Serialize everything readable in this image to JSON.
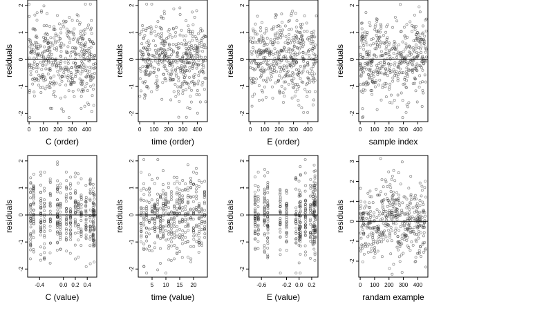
{
  "colors": {
    "point": "#333333",
    "axis": "#000000",
    "background": "#ffffff"
  },
  "chart_data": [
    {
      "type": "scatter",
      "xlabel": "C (order)",
      "ylabel": "residuals",
      "x_ticks": [
        "0",
        "100",
        "200",
        "300",
        "400"
      ],
      "x_tick_values": [
        0,
        100,
        200,
        300,
        400
      ],
      "xlim": [
        -10,
        470
      ],
      "y_ticks": [
        "-2",
        "-1",
        "0",
        "1",
        "2"
      ],
      "y_tick_values": [
        -2,
        -1,
        0,
        1,
        2
      ],
      "ylim": [
        -2.3,
        2.2
      ],
      "reference_line": 0,
      "n_points": 450,
      "x_pattern": "uniform",
      "spread": 0.75
    },
    {
      "type": "scatter",
      "xlabel": "time (order)",
      "ylabel": "residuals",
      "x_ticks": [
        "0",
        "100",
        "200",
        "300",
        "400"
      ],
      "x_tick_values": [
        0,
        100,
        200,
        300,
        400
      ],
      "xlim": [
        -10,
        470
      ],
      "y_ticks": [
        "-2",
        "-1",
        "0",
        "1",
        "2"
      ],
      "y_tick_values": [
        -2,
        -1,
        0,
        1,
        2
      ],
      "ylim": [
        -2.3,
        2.2
      ],
      "reference_line": 0,
      "n_points": 450,
      "x_pattern": "uniform",
      "spread": 0.75
    },
    {
      "type": "scatter",
      "xlabel": "E (order)",
      "ylabel": "residuals",
      "x_ticks": [
        "0",
        "100",
        "200",
        "300",
        "400"
      ],
      "x_tick_values": [
        0,
        100,
        200,
        300,
        400
      ],
      "xlim": [
        -10,
        470
      ],
      "y_ticks": [
        "-2",
        "-1",
        "0",
        "1",
        "2"
      ],
      "y_tick_values": [
        -2,
        -1,
        0,
        1,
        2
      ],
      "ylim": [
        -2.3,
        2.2
      ],
      "reference_line": 0,
      "n_points": 450,
      "x_pattern": "uniform",
      "spread": 0.75
    },
    {
      "type": "scatter",
      "xlabel": "sample index",
      "ylabel": "residuals",
      "x_ticks": [
        "0",
        "100",
        "200",
        "300",
        "400"
      ],
      "x_tick_values": [
        0,
        100,
        200,
        300,
        400
      ],
      "xlim": [
        -10,
        470
      ],
      "y_ticks": [
        "-2",
        "-1",
        "0",
        "1",
        "2"
      ],
      "y_tick_values": [
        -2,
        -1,
        0,
        1,
        2
      ],
      "ylim": [
        -2.3,
        2.2
      ],
      "reference_line": 0,
      "n_points": 450,
      "x_pattern": "uniform",
      "spread": 0.75
    },
    {
      "type": "scatter",
      "xlabel": "C (value)",
      "ylabel": "residuals",
      "x_ticks": [
        "-0.4",
        "0.0",
        "0.2",
        "0.4"
      ],
      "x_tick_values": [
        -0.4,
        0.0,
        0.2,
        0.4
      ],
      "xlim": [
        -0.6,
        0.56
      ],
      "y_ticks": [
        "-2",
        "-1",
        "0",
        "1",
        "2"
      ],
      "y_tick_values": [
        -2,
        -1,
        0,
        1,
        2
      ],
      "ylim": [
        -2.3,
        2.2
      ],
      "reference_line": 0,
      "n_points": 450,
      "x_pattern": "clusters",
      "spread": 0.75,
      "x_clusters": [
        -0.55,
        -0.5,
        -0.38,
        -0.32,
        -0.22,
        -0.1,
        -0.05,
        0.05,
        0.12,
        0.2,
        0.25,
        0.3,
        0.38,
        0.45,
        0.5,
        0.52
      ]
    },
    {
      "type": "scatter",
      "xlabel": "time (value)",
      "ylabel": "residuals",
      "x_ticks": [
        "5",
        "10",
        "15",
        "20"
      ],
      "x_tick_values": [
        5,
        10,
        15,
        20
      ],
      "xlim": [
        0,
        25
      ],
      "y_ticks": [
        "-2",
        "-1",
        "0",
        "1",
        "2"
      ],
      "y_tick_values": [
        -2,
        -1,
        0,
        1,
        2
      ],
      "ylim": [
        -2.3,
        2.2
      ],
      "reference_line": 0,
      "n_points": 450,
      "x_pattern": "clusters",
      "spread": 0.75,
      "x_clusters": [
        1,
        2,
        3,
        4,
        5,
        6,
        7,
        8,
        9,
        10,
        11,
        12,
        13,
        14,
        15,
        16,
        17,
        18,
        19,
        20,
        21,
        22,
        23,
        24
      ]
    },
    {
      "type": "scatter",
      "xlabel": "E (value)",
      "ylabel": "residuals",
      "x_ticks": [
        "-0.6",
        "-0.2",
        "0.0",
        "0.2"
      ],
      "x_tick_values": [
        -0.6,
        -0.2,
        0.0,
        0.2
      ],
      "xlim": [
        -0.8,
        0.3
      ],
      "y_ticks": [
        "-2",
        "-1",
        "0",
        "1",
        "2"
      ],
      "y_tick_values": [
        -2,
        -1,
        0,
        1,
        2
      ],
      "ylim": [
        -2.3,
        2.2
      ],
      "reference_line": 0,
      "n_points": 450,
      "x_pattern": "clusters",
      "spread": 0.75,
      "x_clusters": [
        -0.7,
        -0.65,
        -0.55,
        -0.5,
        -0.3,
        -0.2,
        -0.05,
        0.0,
        0.02,
        0.1,
        0.18,
        0.22,
        0.24,
        0.25,
        0.26
      ]
    },
    {
      "type": "scatter",
      "xlabel": "randam example",
      "ylabel": "residuals",
      "x_ticks": [
        "0",
        "100",
        "200",
        "300",
        "400"
      ],
      "x_tick_values": [
        0,
        100,
        200,
        300,
        400
      ],
      "xlim": [
        -10,
        470
      ],
      "y_ticks": [
        "-2",
        "-1",
        "0",
        "1",
        "2",
        "3"
      ],
      "y_tick_values": [
        -2,
        -1,
        0,
        1,
        2,
        3
      ],
      "ylim": [
        -2.8,
        3.3
      ],
      "reference_line": 0,
      "n_points": 450,
      "x_pattern": "uniform",
      "spread": 1.0
    }
  ]
}
